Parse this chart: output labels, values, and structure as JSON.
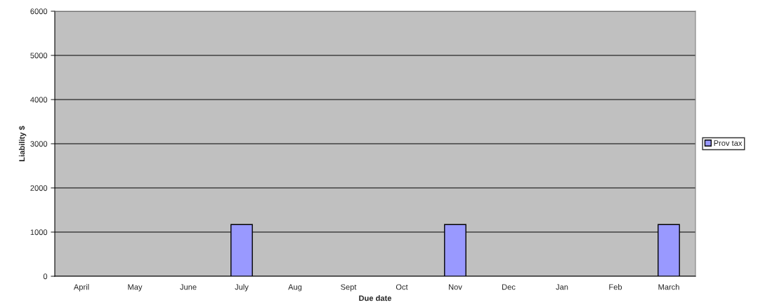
{
  "chart_data": {
    "type": "bar",
    "xlabel": "Due date",
    "ylabel": "Liability $",
    "categories": [
      "April",
      "May",
      "June",
      "July",
      "Aug",
      "Sept",
      "Oct",
      "Nov",
      "Dec",
      "Jan",
      "Feb",
      "March"
    ],
    "series": [
      {
        "name": "Prov tax",
        "color": "#9999ff",
        "values": [
          0,
          0,
          0,
          1170,
          0,
          0,
          0,
          1170,
          0,
          0,
          0,
          1170
        ]
      }
    ],
    "ylim": [
      0,
      6000
    ],
    "yticks": [
      0,
      1000,
      2000,
      3000,
      4000,
      5000,
      6000
    ],
    "grid": "y",
    "legend": "right"
  }
}
